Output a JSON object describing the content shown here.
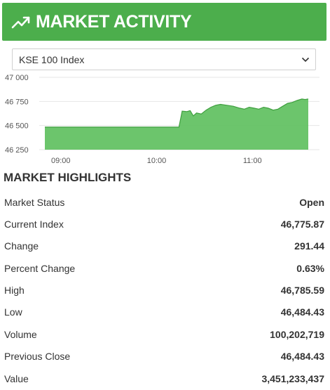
{
  "header": {
    "title": "MARKET ACTIVITY",
    "icon": "trending-up-icon",
    "bg_color": "#4cae4c"
  },
  "index_select": {
    "selected": "KSE 100 Index",
    "icon": "chevron-down-icon"
  },
  "chart_data": {
    "type": "area",
    "color": "#5cbf5c",
    "y_ticks": [
      "47 000",
      "46 750",
      "46 500",
      "46 250"
    ],
    "x_ticks": [
      "09:00",
      "10:00",
      "11:00"
    ],
    "ylim": [
      46250,
      47000
    ],
    "x_range": [
      "08:50",
      "11:35"
    ],
    "grid": "horizontal",
    "series": [
      {
        "x": [
          "08:50",
          "09:10",
          "09:30",
          "09:50",
          "10:10",
          "10:14",
          "10:16",
          "10:19",
          "10:21",
          "10:23",
          "10:25",
          "10:28",
          "10:31",
          "10:34",
          "10:37",
          "10:40",
          "10:44",
          "10:48",
          "10:52",
          "10:55",
          "10:58",
          "11:01",
          "11:04",
          "11:07",
          "11:10",
          "11:13",
          "11:16",
          "11:19",
          "11:22",
          "11:25",
          "11:28",
          "11:31",
          "11:33",
          "11:35"
        ],
        "y": [
          46484,
          46484,
          46484,
          46484,
          46484,
          46484,
          46650,
          46645,
          46655,
          46600,
          46630,
          46620,
          46660,
          46690,
          46710,
          46720,
          46710,
          46700,
          46680,
          46670,
          46690,
          46680,
          46670,
          46690,
          46680,
          46660,
          46670,
          46700,
          46730,
          46740,
          46760,
          46775,
          46770,
          46776
        ]
      }
    ]
  },
  "highlights": {
    "title": "MARKET HIGHLIGHTS",
    "rows": [
      {
        "label": "Market Status",
        "value": "Open"
      },
      {
        "label": "Current Index",
        "value": "46,775.87"
      },
      {
        "label": "Change",
        "value": "291.44"
      },
      {
        "label": "Percent Change",
        "value": "0.63%"
      },
      {
        "label": "High",
        "value": "46,785.59"
      },
      {
        "label": "Low",
        "value": "46,484.43"
      },
      {
        "label": "Volume",
        "value": "100,202,719"
      },
      {
        "label": "Previous Close",
        "value": "46,484.43"
      },
      {
        "label": "Value",
        "value": "3,451,233,437"
      }
    ]
  }
}
